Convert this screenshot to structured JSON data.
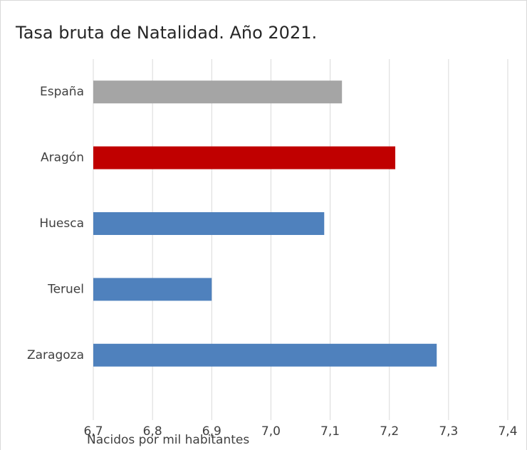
{
  "chart_data": {
    "type": "bar",
    "orientation": "horizontal",
    "title": "Tasa bruta de Natalidad. Año 2021.",
    "x_label": "Nacidos por mil habitantes",
    "categories": [
      "España",
      "Aragón",
      "Huesca",
      "Teruel",
      "Zaragoza"
    ],
    "values": [
      7.12,
      7.21,
      7.09,
      6.9,
      7.28
    ],
    "colors": [
      "#a5a5a5",
      "#c00000",
      "#4f81bd",
      "#4f81bd",
      "#4f81bd"
    ],
    "xlim": [
      6.7,
      7.4
    ],
    "xticks": [
      {
        "value": 6.7,
        "label": "6,7"
      },
      {
        "value": 6.8,
        "label": "6,8"
      },
      {
        "value": 6.9,
        "label": "6,9"
      },
      {
        "value": 7.0,
        "label": "7,0"
      },
      {
        "value": 7.1,
        "label": "7,1"
      },
      {
        "value": 7.2,
        "label": "7,2"
      },
      {
        "value": 7.3,
        "label": "7,3"
      },
      {
        "value": 7.4,
        "label": "7,4"
      }
    ],
    "grid": true
  }
}
